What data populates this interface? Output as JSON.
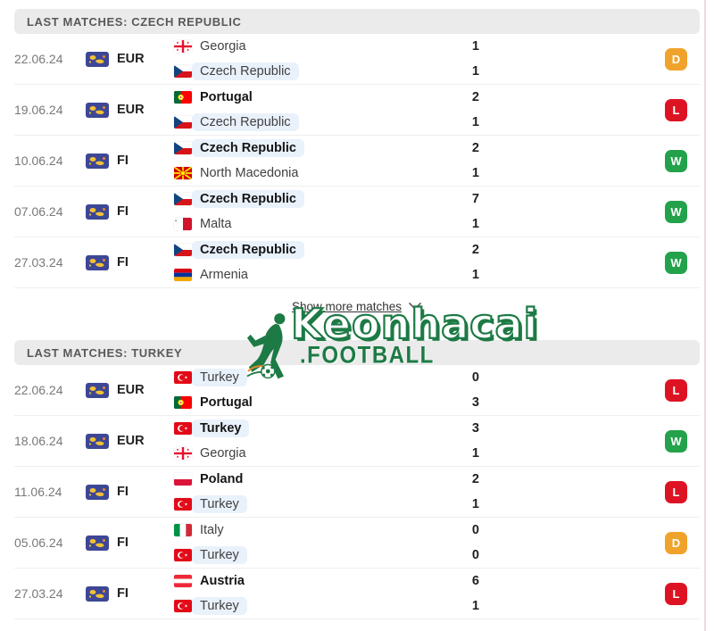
{
  "colors": {
    "win": "#23a24b",
    "draw": "#f0a32b",
    "loss": "#dd1323",
    "highlight_bg": "#e9f1fb",
    "header_bg": "#ebebeb",
    "watermark_green": "#1d7a45"
  },
  "sections": [
    {
      "title": "LAST MATCHES: CZECH REPUBLIC",
      "matches": [
        {
          "date": "22.06.24",
          "competition": "EUR",
          "result": "D",
          "teams": [
            {
              "name": "Georgia",
              "flag": "georgia",
              "score": "1",
              "winner": false,
              "highlighted": false
            },
            {
              "name": "Czech Republic",
              "flag": "czech-republic",
              "score": "1",
              "winner": false,
              "highlighted": true
            }
          ]
        },
        {
          "date": "19.06.24",
          "competition": "EUR",
          "result": "L",
          "teams": [
            {
              "name": "Portugal",
              "flag": "portugal",
              "score": "2",
              "winner": true,
              "highlighted": false
            },
            {
              "name": "Czech Republic",
              "flag": "czech-republic",
              "score": "1",
              "winner": false,
              "highlighted": true
            }
          ]
        },
        {
          "date": "10.06.24",
          "competition": "FI",
          "result": "W",
          "teams": [
            {
              "name": "Czech Republic",
              "flag": "czech-republic",
              "score": "2",
              "winner": true,
              "highlighted": true
            },
            {
              "name": "North Macedonia",
              "flag": "north-macedonia",
              "score": "1",
              "winner": false,
              "highlighted": false
            }
          ]
        },
        {
          "date": "07.06.24",
          "competition": "FI",
          "result": "W",
          "teams": [
            {
              "name": "Czech Republic",
              "flag": "czech-republic",
              "score": "7",
              "winner": true,
              "highlighted": true
            },
            {
              "name": "Malta",
              "flag": "malta",
              "score": "1",
              "winner": false,
              "highlighted": false
            }
          ]
        },
        {
          "date": "27.03.24",
          "competition": "FI",
          "result": "W",
          "teams": [
            {
              "name": "Czech Republic",
              "flag": "czech-republic",
              "score": "2",
              "winner": true,
              "highlighted": true
            },
            {
              "name": "Armenia",
              "flag": "armenia",
              "score": "1",
              "winner": false,
              "highlighted": false
            }
          ]
        }
      ]
    },
    {
      "title": "LAST MATCHES: TURKEY",
      "matches": [
        {
          "date": "22.06.24",
          "competition": "EUR",
          "result": "L",
          "teams": [
            {
              "name": "Turkey",
              "flag": "turkey",
              "score": "0",
              "winner": false,
              "highlighted": true
            },
            {
              "name": "Portugal",
              "flag": "portugal",
              "score": "3",
              "winner": true,
              "highlighted": false
            }
          ]
        },
        {
          "date": "18.06.24",
          "competition": "EUR",
          "result": "W",
          "teams": [
            {
              "name": "Turkey",
              "flag": "turkey",
              "score": "3",
              "winner": true,
              "highlighted": true
            },
            {
              "name": "Georgia",
              "flag": "georgia",
              "score": "1",
              "winner": false,
              "highlighted": false
            }
          ]
        },
        {
          "date": "11.06.24",
          "competition": "FI",
          "result": "L",
          "teams": [
            {
              "name": "Poland",
              "flag": "poland",
              "score": "2",
              "winner": true,
              "highlighted": false
            },
            {
              "name": "Turkey",
              "flag": "turkey",
              "score": "1",
              "winner": false,
              "highlighted": true
            }
          ]
        },
        {
          "date": "05.06.24",
          "competition": "FI",
          "result": "D",
          "teams": [
            {
              "name": "Italy",
              "flag": "italy",
              "score": "0",
              "winner": false,
              "highlighted": false
            },
            {
              "name": "Turkey",
              "flag": "turkey",
              "score": "0",
              "winner": false,
              "highlighted": true
            }
          ]
        },
        {
          "date": "27.03.24",
          "competition": "FI",
          "result": "L",
          "teams": [
            {
              "name": "Austria",
              "flag": "austria",
              "score": "6",
              "winner": true,
              "highlighted": false
            },
            {
              "name": "Turkey",
              "flag": "turkey",
              "score": "1",
              "winner": false,
              "highlighted": true
            }
          ]
        }
      ]
    }
  ],
  "show_more": {
    "label": "Show more matches"
  },
  "watermark": {
    "title": "Keonhacai",
    "subtitle": ".FOOTBALL"
  }
}
